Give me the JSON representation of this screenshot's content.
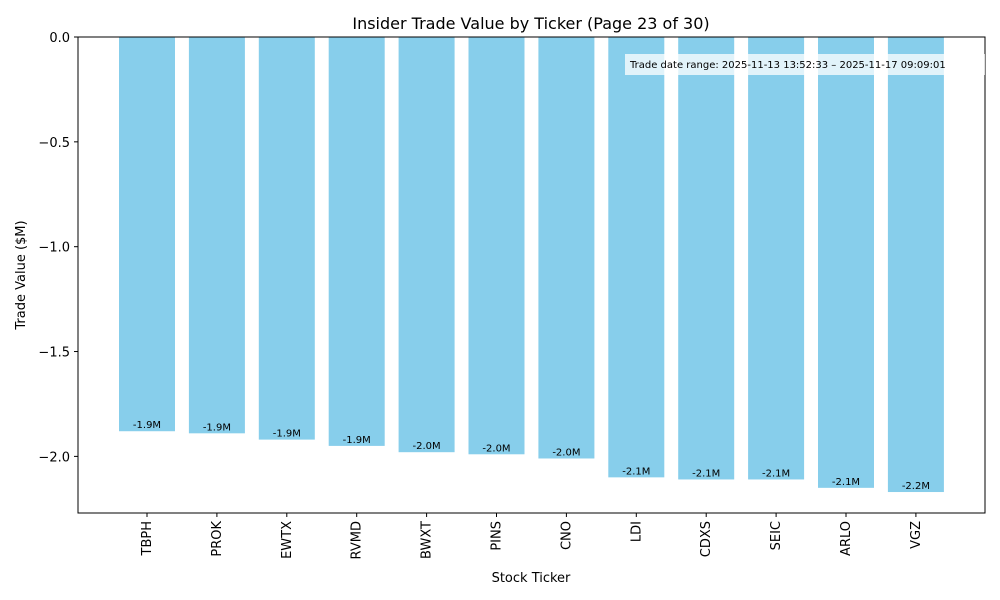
{
  "chart_data": {
    "type": "bar",
    "title": "Insider Trade Value by Ticker (Page 23 of 30)",
    "xlabel": "Stock Ticker",
    "ylabel": "Trade Value ($M)",
    "categories": [
      "TBPH",
      "PROK",
      "EWTX",
      "RVMD",
      "BWXT",
      "PINS",
      "CNO",
      "LDI",
      "CDXS",
      "SEIC",
      "ARLO",
      "VGZ"
    ],
    "values": [
      -1.88,
      -1.89,
      -1.92,
      -1.95,
      -1.98,
      -1.99,
      -2.01,
      -2.1,
      -2.11,
      -2.11,
      -2.15,
      -2.17
    ],
    "data_labels": [
      "-1.9M",
      "-1.9M",
      "-1.9M",
      "-1.9M",
      "-2.0M",
      "-2.0M",
      "-2.0M",
      "-2.1M",
      "-2.1M",
      "-2.1M",
      "-2.1M",
      "-2.2M"
    ],
    "yticks": [
      0.0,
      -0.5,
      -1.0,
      -1.5,
      -2.0
    ],
    "ytick_labels": [
      "0.0",
      "−0.5",
      "−1.0",
      "−1.5",
      "−2.0"
    ],
    "ylim": [
      -2.27,
      0.0
    ],
    "grid": false,
    "bar_color": "#87ceeb",
    "annotation": "Trade date range: 2025-11-13 13:52:33 – 2025-11-17 09:09:01"
  }
}
